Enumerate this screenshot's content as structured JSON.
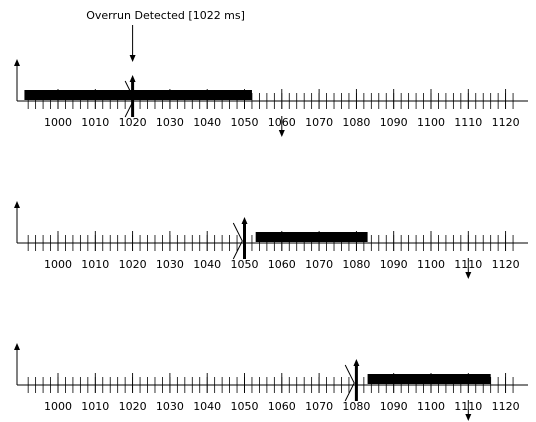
{
  "annotation": {
    "label": "Overrun Detected [1022 ms]"
  },
  "axis": {
    "min": 991,
    "max": 1122,
    "minor_step": 2,
    "major_step": 10,
    "tick_labels": [
      "1000",
      "1010",
      "1020",
      "1030",
      "1040",
      "1050",
      "1060",
      "1070",
      "1080",
      "1090",
      "1100",
      "1110",
      "1120"
    ]
  },
  "timelines": [
    {
      "name": "timeline-1",
      "bar": [
        991,
        1052
      ],
      "release_up": 1020,
      "deadline_down": 1060,
      "preempt_mark": 1018
    },
    {
      "name": "timeline-2",
      "bar": [
        1053,
        1083
      ],
      "release_up": 1050,
      "deadline_down": 1110,
      "preempt_mark": 1047
    },
    {
      "name": "timeline-3",
      "bar": [
        1083,
        1116
      ],
      "release_up": 1080,
      "deadline_down": 1110,
      "preempt_mark": 1077
    }
  ],
  "colors": {
    "ink": "#000000",
    "background": "#ffffff"
  }
}
